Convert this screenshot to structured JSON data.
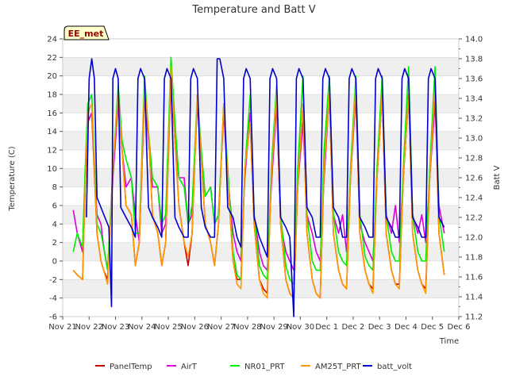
{
  "chart_data": {
    "type": "line",
    "title": "Temperature and Batt V",
    "xlabel": "Time",
    "ylabel_left": "Temperature (C)",
    "ylabel_right": "Batt V",
    "station_label": "EE_met",
    "x_tick_labels": [
      "Nov 21",
      "Nov 22",
      "Nov 23",
      "Nov 24",
      "Nov 25",
      "Nov 26",
      "Nov 27",
      "Nov 28",
      "Nov 29",
      "Nov 30",
      "Dec 1",
      "Dec 2",
      "Dec 3",
      "Dec 4",
      "Dec 5",
      "Dec 6"
    ],
    "x_range_days": [
      0,
      15
    ],
    "ylim_left": [
      -6,
      24
    ],
    "y_ticks_left": [
      -6,
      -4,
      -2,
      0,
      2,
      4,
      6,
      8,
      10,
      12,
      14,
      16,
      18,
      20,
      22,
      24
    ],
    "ylim_right": [
      11.2,
      14.0
    ],
    "y_ticks_right": [
      11.2,
      11.4,
      11.6,
      11.8,
      12.0,
      12.2,
      12.4,
      12.6,
      12.8,
      13.0,
      13.2,
      13.4,
      13.6,
      13.8,
      14.0
    ],
    "grid": "horizontal bands",
    "legend_position": "bottom",
    "series": [
      {
        "name": "PanelTemp",
        "color": "#cc0000",
        "axis": "left",
        "x": [
          0.4,
          0.55,
          0.75,
          0.85,
          0.95,
          1.1,
          1.3,
          1.45,
          1.55,
          1.7,
          1.9,
          2.1,
          2.25,
          2.4,
          2.6,
          2.75,
          2.9,
          3.1,
          3.25,
          3.4,
          3.6,
          3.75,
          3.9,
          4.1,
          4.25,
          4.4,
          4.6,
          4.75,
          4.9,
          5.1,
          5.25,
          5.4,
          5.6,
          5.75,
          5.9,
          6.1,
          6.25,
          6.45,
          6.6,
          6.75,
          6.9,
          7.1,
          7.25,
          7.45,
          7.6,
          7.75,
          7.9,
          8.1,
          8.25,
          8.45,
          8.6,
          8.75,
          8.9,
          9.1,
          9.25,
          9.45,
          9.6,
          9.75,
          9.9,
          10.1,
          10.25,
          10.45,
          10.6,
          10.75,
          10.9,
          11.1,
          11.25,
          11.45,
          11.6,
          11.75,
          11.9,
          12.1,
          12.25,
          12.45,
          12.6,
          12.75,
          12.9,
          13.1,
          13.25,
          13.45,
          13.6,
          13.75,
          13.9,
          14.1,
          14.25,
          14.45
        ],
        "y": [
          -1,
          -1.5,
          -2,
          8,
          15,
          16,
          3,
          0,
          -1,
          -2,
          10,
          17,
          12,
          6,
          5,
          -0.5,
          2,
          18,
          14,
          5,
          3,
          -0.5,
          2,
          20,
          13,
          6,
          2,
          -0.5,
          3,
          18,
          11,
          4,
          2,
          -0.5,
          4,
          17,
          9,
          0,
          -2,
          -2,
          10,
          15,
          4,
          -2,
          -3,
          -3.5,
          9,
          17,
          4,
          -2,
          -3.5,
          -4,
          8,
          17,
          3,
          -2,
          -3.5,
          -4,
          10,
          18,
          3,
          -1,
          -2.5,
          -3,
          9,
          18,
          3,
          -1,
          -2.5,
          -3,
          9,
          18,
          3,
          -1,
          -2.5,
          -2.5,
          9,
          18,
          3,
          -1,
          -2.5,
          -3,
          9,
          18,
          3,
          -1.5
        ]
      },
      {
        "name": "AirT",
        "color": "#dd00dd",
        "axis": "left",
        "x": [
          0.4,
          0.55,
          0.75,
          0.85,
          0.95,
          1.1,
          1.3,
          1.45,
          1.55,
          1.7,
          1.9,
          2.1,
          2.25,
          2.4,
          2.6,
          2.75,
          2.9,
          3.1,
          3.25,
          3.4,
          3.6,
          3.75,
          3.9,
          4.1,
          4.25,
          4.4,
          4.6,
          4.75,
          4.9,
          5.1,
          5.25,
          5.4,
          5.6,
          5.75,
          5.9,
          6.1,
          6.25,
          6.45,
          6.6,
          6.75,
          6.9,
          7.1,
          7.25,
          7.45,
          7.6,
          7.75,
          7.9,
          8.1,
          8.25,
          8.45,
          8.6,
          8.75,
          8.9,
          9.1,
          9.25,
          9.45,
          9.6,
          9.75,
          9.9,
          10.1,
          10.25,
          10.45,
          10.6,
          10.75,
          10.9,
          11.1,
          11.25,
          11.45,
          11.6,
          11.75,
          11.9,
          12.1,
          12.25,
          12.45,
          12.6,
          12.75,
          12.9,
          13.1,
          13.25,
          13.45,
          13.6,
          13.75,
          13.9,
          14.1,
          14.25,
          14.45
        ],
        "y": [
          5.5,
          3,
          1,
          8,
          15,
          16,
          5,
          4,
          1.5,
          -1,
          9,
          17,
          12,
          8,
          9,
          5,
          2,
          18,
          13,
          8,
          8,
          3,
          4,
          20,
          13,
          9,
          9,
          4,
          5,
          17,
          11,
          7,
          8,
          4,
          5,
          16,
          9,
          3,
          1,
          0,
          9,
          16,
          5,
          1,
          -0.5,
          -1,
          8,
          17,
          4,
          1,
          0,
          -1,
          8,
          15,
          5,
          3,
          1,
          0,
          9,
          18,
          5,
          3,
          5,
          1,
          9,
          18,
          4,
          2,
          1,
          0,
          9,
          18,
          5,
          3,
          6,
          2,
          9,
          18,
          5,
          3,
          5,
          2,
          9,
          17,
          6,
          3
        ]
      },
      {
        "name": "NR01_PRT",
        "color": "#00ee00",
        "axis": "left",
        "x": [
          0.4,
          0.55,
          0.75,
          0.85,
          0.95,
          1.1,
          1.3,
          1.45,
          1.55,
          1.7,
          1.9,
          2.1,
          2.25,
          2.4,
          2.6,
          2.75,
          2.9,
          3.1,
          3.25,
          3.4,
          3.6,
          3.75,
          3.9,
          4.1,
          4.25,
          4.4,
          4.6,
          4.75,
          4.9,
          5.1,
          5.25,
          5.4,
          5.6,
          5.75,
          5.9,
          6.1,
          6.25,
          6.45,
          6.6,
          6.75,
          6.9,
          7.1,
          7.25,
          7.45,
          7.6,
          7.75,
          7.9,
          8.1,
          8.25,
          8.45,
          8.6,
          8.75,
          8.9,
          9.1,
          9.25,
          9.45,
          9.6,
          9.75,
          9.9,
          10.1,
          10.25,
          10.45,
          10.6,
          10.75,
          10.9,
          11.1,
          11.25,
          11.45,
          11.6,
          11.75,
          11.9,
          12.1,
          12.25,
          12.45,
          12.6,
          12.75,
          12.9,
          13.1,
          13.25,
          13.45,
          13.6,
          13.75,
          13.9,
          14.1,
          14.25,
          14.45
        ],
        "y": [
          1,
          3,
          1.5,
          10,
          17,
          18,
          4,
          3,
          1.5,
          -1,
          10,
          19,
          13,
          11,
          9,
          3,
          3,
          20,
          14,
          9,
          8,
          4,
          5,
          22,
          15,
          9,
          8,
          4,
          6,
          18,
          12,
          7,
          8,
          4,
          5,
          17,
          10,
          1,
          -1.5,
          -2,
          10,
          18,
          5,
          -0.5,
          -1.5,
          -2,
          10,
          19,
          5,
          -0.5,
          -2,
          -2.5,
          10,
          20,
          5,
          0,
          -1,
          -1,
          12,
          20,
          5,
          1,
          0,
          -0.5,
          10,
          20,
          5,
          0.5,
          -0.5,
          -1,
          10,
          20,
          5,
          1,
          0,
          0,
          10,
          21,
          5,
          1,
          0,
          0,
          10,
          21,
          5,
          1
        ]
      },
      {
        "name": "AM25T_PRT",
        "color": "#ff9900",
        "axis": "left",
        "x": [
          0.4,
          0.55,
          0.75,
          0.85,
          0.95,
          1.1,
          1.3,
          1.45,
          1.55,
          1.7,
          1.9,
          2.1,
          2.25,
          2.4,
          2.6,
          2.75,
          2.9,
          3.1,
          3.25,
          3.4,
          3.6,
          3.75,
          3.9,
          4.1,
          4.25,
          4.4,
          4.6,
          4.75,
          4.9,
          5.1,
          5.25,
          5.4,
          5.6,
          5.75,
          5.9,
          6.1,
          6.25,
          6.45,
          6.6,
          6.75,
          6.9,
          7.1,
          7.25,
          7.45,
          7.6,
          7.75,
          7.9,
          8.1,
          8.25,
          8.45,
          8.6,
          8.75,
          8.9,
          9.1,
          9.25,
          9.45,
          9.6,
          9.75,
          9.9,
          10.1,
          10.25,
          10.45,
          10.6,
          10.75,
          10.9,
          11.1,
          11.25,
          11.45,
          11.6,
          11.75,
          11.9,
          12.1,
          12.25,
          12.45,
          12.6,
          12.75,
          12.9,
          13.1,
          13.25,
          13.45,
          13.6,
          13.75,
          13.9,
          14.1,
          14.25,
          14.45
        ],
        "y": [
          -1,
          -1.5,
          -2,
          8,
          16,
          17,
          3,
          0,
          -1,
          -2.5,
          10,
          18,
          12,
          6,
          5,
          -0.5,
          2,
          19,
          14,
          5,
          3,
          -0.5,
          2,
          21,
          13,
          6,
          2,
          0.5,
          3,
          18,
          11,
          4,
          2,
          -0.5,
          4,
          17,
          9,
          0,
          -2.5,
          -3,
          10,
          15,
          4,
          -2,
          -3.5,
          -4,
          9,
          18,
          4,
          -2,
          -3.5,
          -4,
          8,
          17,
          3,
          -2,
          -3.5,
          -4,
          10,
          18,
          3,
          -1,
          -2.5,
          -3,
          9,
          19,
          3,
          -1,
          -2.5,
          -3.5,
          9,
          18,
          3,
          -1,
          -2.5,
          -3,
          9,
          18,
          3,
          -1,
          -2.5,
          -3.5,
          9,
          19,
          3,
          -1.5
        ]
      },
      {
        "name": "batt_volt",
        "color": "#0000cc",
        "axis": "right",
        "x": [
          0.9,
          1.0,
          1.1,
          1.2,
          1.3,
          1.45,
          1.6,
          1.75,
          1.85,
          1.9,
          2.0,
          2.1,
          2.2,
          2.4,
          2.6,
          2.75,
          2.85,
          2.95,
          3.1,
          3.25,
          3.4,
          3.6,
          3.75,
          3.85,
          3.95,
          4.1,
          4.25,
          4.4,
          4.6,
          4.75,
          4.85,
          4.95,
          5.1,
          5.25,
          5.4,
          5.6,
          5.75,
          5.85,
          5.95,
          6.1,
          6.25,
          6.45,
          6.6,
          6.75,
          6.85,
          6.95,
          7.1,
          7.25,
          7.45,
          7.6,
          7.75,
          7.85,
          7.95,
          8.1,
          8.25,
          8.45,
          8.6,
          8.75,
          8.85,
          8.95,
          9.1,
          9.25,
          9.45,
          9.6,
          9.75,
          9.85,
          9.95,
          10.1,
          10.25,
          10.45,
          10.6,
          10.75,
          10.85,
          10.95,
          11.1,
          11.25,
          11.45,
          11.6,
          11.75,
          11.85,
          11.95,
          12.1,
          12.25,
          12.45,
          12.6,
          12.75,
          12.85,
          12.95,
          13.1,
          13.25,
          13.45,
          13.6,
          13.75,
          13.85,
          13.95,
          14.1,
          14.25,
          14.45
        ],
        "y": [
          12.2,
          13.6,
          13.8,
          13.6,
          12.4,
          12.3,
          12.2,
          12.1,
          11.3,
          13.6,
          13.7,
          13.6,
          12.3,
          12.2,
          12.1,
          12.0,
          13.6,
          13.7,
          13.6,
          12.3,
          12.2,
          12.1,
          12.0,
          13.6,
          13.7,
          13.6,
          12.2,
          12.1,
          12.0,
          12.0,
          13.6,
          13.7,
          13.6,
          12.3,
          12.1,
          12.0,
          12.0,
          13.8,
          13.8,
          13.6,
          12.3,
          12.2,
          12.0,
          11.9,
          13.6,
          13.7,
          13.6,
          12.2,
          12.0,
          11.9,
          11.8,
          13.6,
          13.7,
          13.6,
          12.2,
          12.1,
          12.0,
          11.2,
          13.6,
          13.7,
          13.6,
          12.3,
          12.2,
          12.0,
          12.0,
          13.6,
          13.7,
          13.6,
          12.3,
          12.2,
          12.0,
          12.0,
          13.6,
          13.7,
          13.6,
          12.2,
          12.1,
          12.0,
          12.0,
          13.6,
          13.7,
          13.6,
          12.2,
          12.1,
          12.0,
          12.0,
          13.6,
          13.7,
          13.6,
          12.2,
          12.1,
          12.0,
          12.0,
          13.6,
          13.7,
          13.6,
          12.2,
          12.1
        ]
      }
    ]
  }
}
